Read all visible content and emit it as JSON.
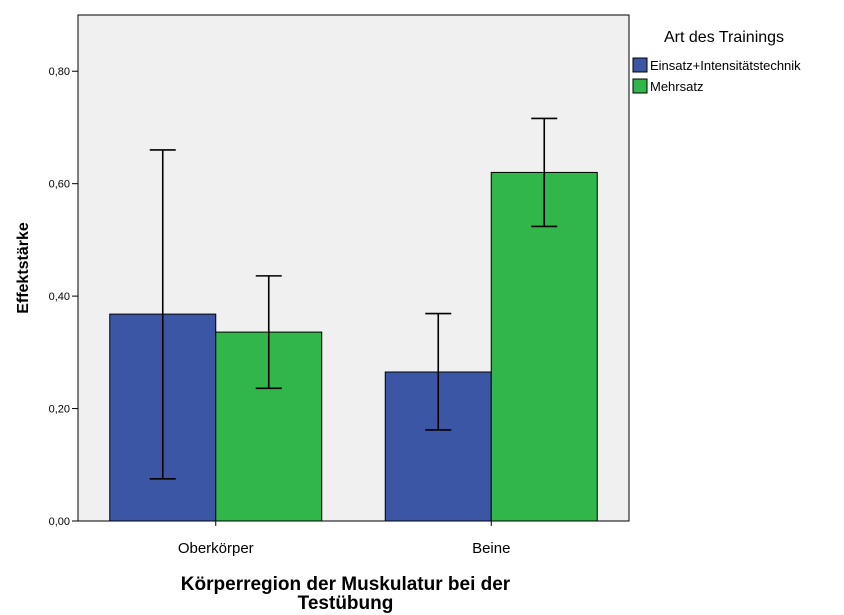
{
  "chart_data": {
    "type": "bar",
    "categories": [
      "Oberkörper",
      "Beine"
    ],
    "series": [
      {
        "name": "Einsatz+Intensitätstechnik",
        "color": "#3c56a6",
        "values": [
          0.368,
          0.265
        ],
        "error_low": [
          0.075,
          0.162
        ],
        "error_high": [
          0.66,
          0.369
        ]
      },
      {
        "name": "Mehrsatz",
        "color": "#31b649",
        "values": [
          0.336,
          0.62
        ],
        "error_low": [
          0.236,
          0.524
        ],
        "error_high": [
          0.436,
          0.716
        ]
      }
    ],
    "xlabel_lines": [
      "Körperregion der Muskulatur bei der",
      "Testübung"
    ],
    "ylabel": "Effektstärke",
    "ylim": [
      0,
      0.9
    ],
    "yticks": [
      0.0,
      0.2,
      0.4,
      0.6,
      0.8
    ],
    "ytick_labels": [
      "0,00",
      "0,20",
      "0,40",
      "0,60",
      "0,80"
    ],
    "legend_title": "Art des Trainings",
    "legend_position": "top-right",
    "plot_background": "#f0f0f0",
    "grid": false
  }
}
